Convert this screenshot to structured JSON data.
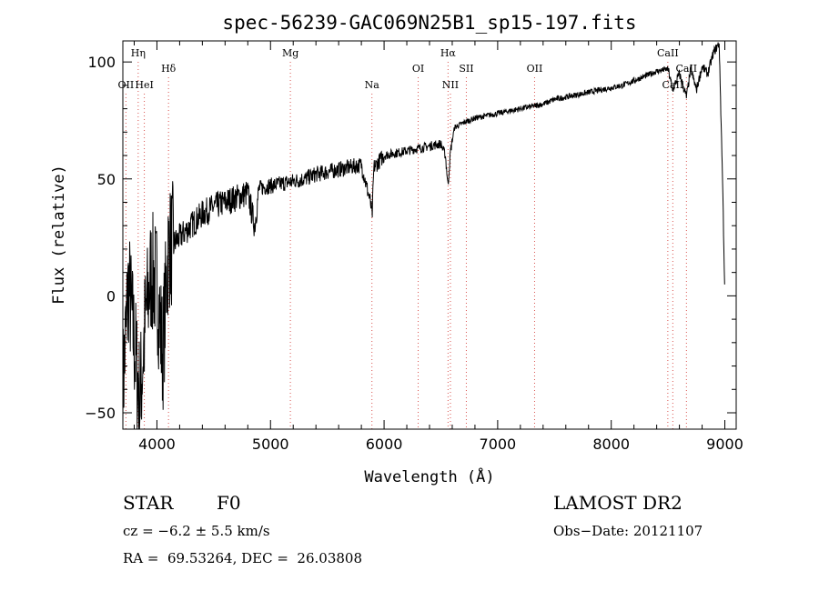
{
  "chart_data": {
    "type": "line",
    "title": "spec-56239-GAC069N25B1_sp15-197.fits",
    "xlabel": "Wavelength (Å)",
    "ylabel": "Flux (relative)",
    "xlim": [
      3700,
      9100
    ],
    "ylim": [
      -57,
      109
    ],
    "x_ticks": [
      4000,
      5000,
      6000,
      7000,
      8000,
      9000
    ],
    "x_tick_labels": [
      "4000",
      "5000",
      "6000",
      "7000",
      "8000",
      "9000"
    ],
    "y_ticks": [
      -50,
      0,
      50,
      100
    ],
    "y_tick_labels": [
      "−50",
      "0",
      "50",
      "100"
    ],
    "grid": false,
    "line_color": "#000000",
    "marker_color": "#d9534f",
    "spectrum": {
      "x": [
        3700,
        3750,
        3800,
        3850,
        3900,
        3950,
        4000,
        4050,
        4100,
        4200,
        4300,
        4400,
        4500,
        4600,
        4700,
        4800,
        4860,
        4900,
        5000,
        5100,
        5200,
        5300,
        5400,
        5500,
        5600,
        5700,
        5800,
        5880,
        5895,
        5910,
        6000,
        6100,
        6200,
        6300,
        6400,
        6500,
        6540,
        6563,
        6585,
        6620,
        6700,
        6800,
        6900,
        7000,
        7100,
        7200,
        7300,
        7400,
        7500,
        7600,
        7700,
        7800,
        7900,
        8000,
        8100,
        8200,
        8300,
        8400,
        8500,
        8540,
        8600,
        8662,
        8700,
        8750,
        8800,
        8850,
        8900,
        8950,
        8980,
        9000
      ],
      "y": [
        -40,
        5,
        -20,
        -45,
        -10,
        10,
        5,
        -25,
        20,
        25,
        30,
        35,
        38,
        40,
        42,
        44,
        30,
        46,
        47,
        48,
        49,
        50,
        52,
        53,
        54,
        55,
        56,
        40,
        34,
        55,
        60,
        61,
        62,
        63,
        64,
        65,
        60,
        47,
        62,
        72,
        74,
        76,
        77,
        78,
        79,
        80,
        81,
        82,
        84,
        85,
        86,
        87,
        88,
        89,
        90,
        92,
        94,
        96,
        97,
        88,
        95,
        85,
        97,
        88,
        98,
        95,
        104,
        108,
        50,
        0
      ]
    },
    "line_markers": [
      {
        "label": "OII",
        "x": 3727,
        "row": 2
      },
      {
        "label": "Hη",
        "x": 3835,
        "row": 0
      },
      {
        "label": "HeI",
        "x": 3889,
        "row": 2
      },
      {
        "label": "Hδ",
        "x": 4102,
        "row": 1
      },
      {
        "label": "Mg",
        "x": 5175,
        "row": 0
      },
      {
        "label": "Na",
        "x": 5893,
        "row": 2
      },
      {
        "label": "OI",
        "x": 6300,
        "row": 1
      },
      {
        "label": "Hα",
        "x": 6563,
        "row": 0
      },
      {
        "label": "NII",
        "x": 6584,
        "row": 2
      },
      {
        "label": "SII",
        "x": 6724,
        "row": 1
      },
      {
        "label": "OII",
        "x": 7325,
        "row": 1
      },
      {
        "label": "CaII",
        "x": 8498,
        "row": 0
      },
      {
        "label": "CaII",
        "x": 8542,
        "row": 2
      },
      {
        "label": "CaII",
        "x": 8662,
        "row": 1
      }
    ]
  },
  "info": {
    "class": "STAR",
    "subclass": "F0",
    "cz": "cz = −6.2 ± 5.5 km/s",
    "radec": "RA =  69.53264, DEC =  26.03808",
    "survey": "LAMOST DR2",
    "obsdate": "Obs−Date: 20121107"
  }
}
